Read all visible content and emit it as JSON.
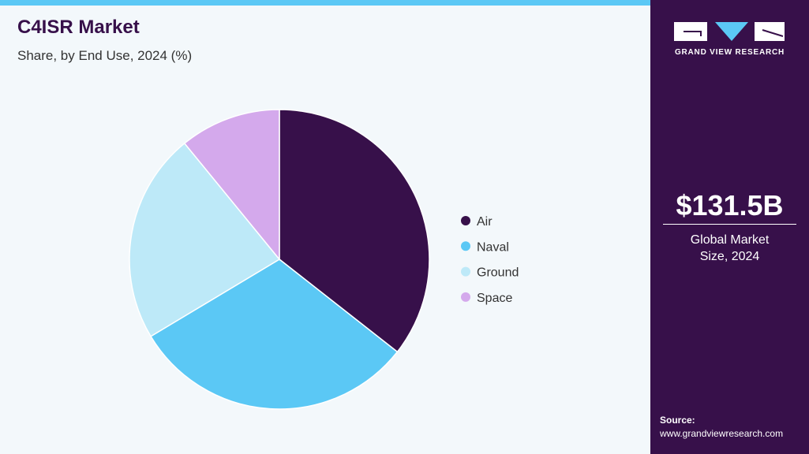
{
  "chart_data": {
    "type": "pie",
    "title": "C4ISR Market",
    "subtitle": "Share, by End Use, 2024 (%)",
    "categories": [
      "Air",
      "Naval",
      "Ground",
      "Space"
    ],
    "values": [
      35.6,
      30.8,
      22.7,
      10.9
    ],
    "colors": [
      "#37104a",
      "#5bc8f5",
      "#bde9f8",
      "#d4a9ec"
    ],
    "legend": "right"
  },
  "sidebar": {
    "brand": "GRAND VIEW RESEARCH",
    "market_size": "$131.5B",
    "market_size_label": "Global Market Size, 2024",
    "source_label": "Source:",
    "source": "www.grandviewresearch.com"
  }
}
